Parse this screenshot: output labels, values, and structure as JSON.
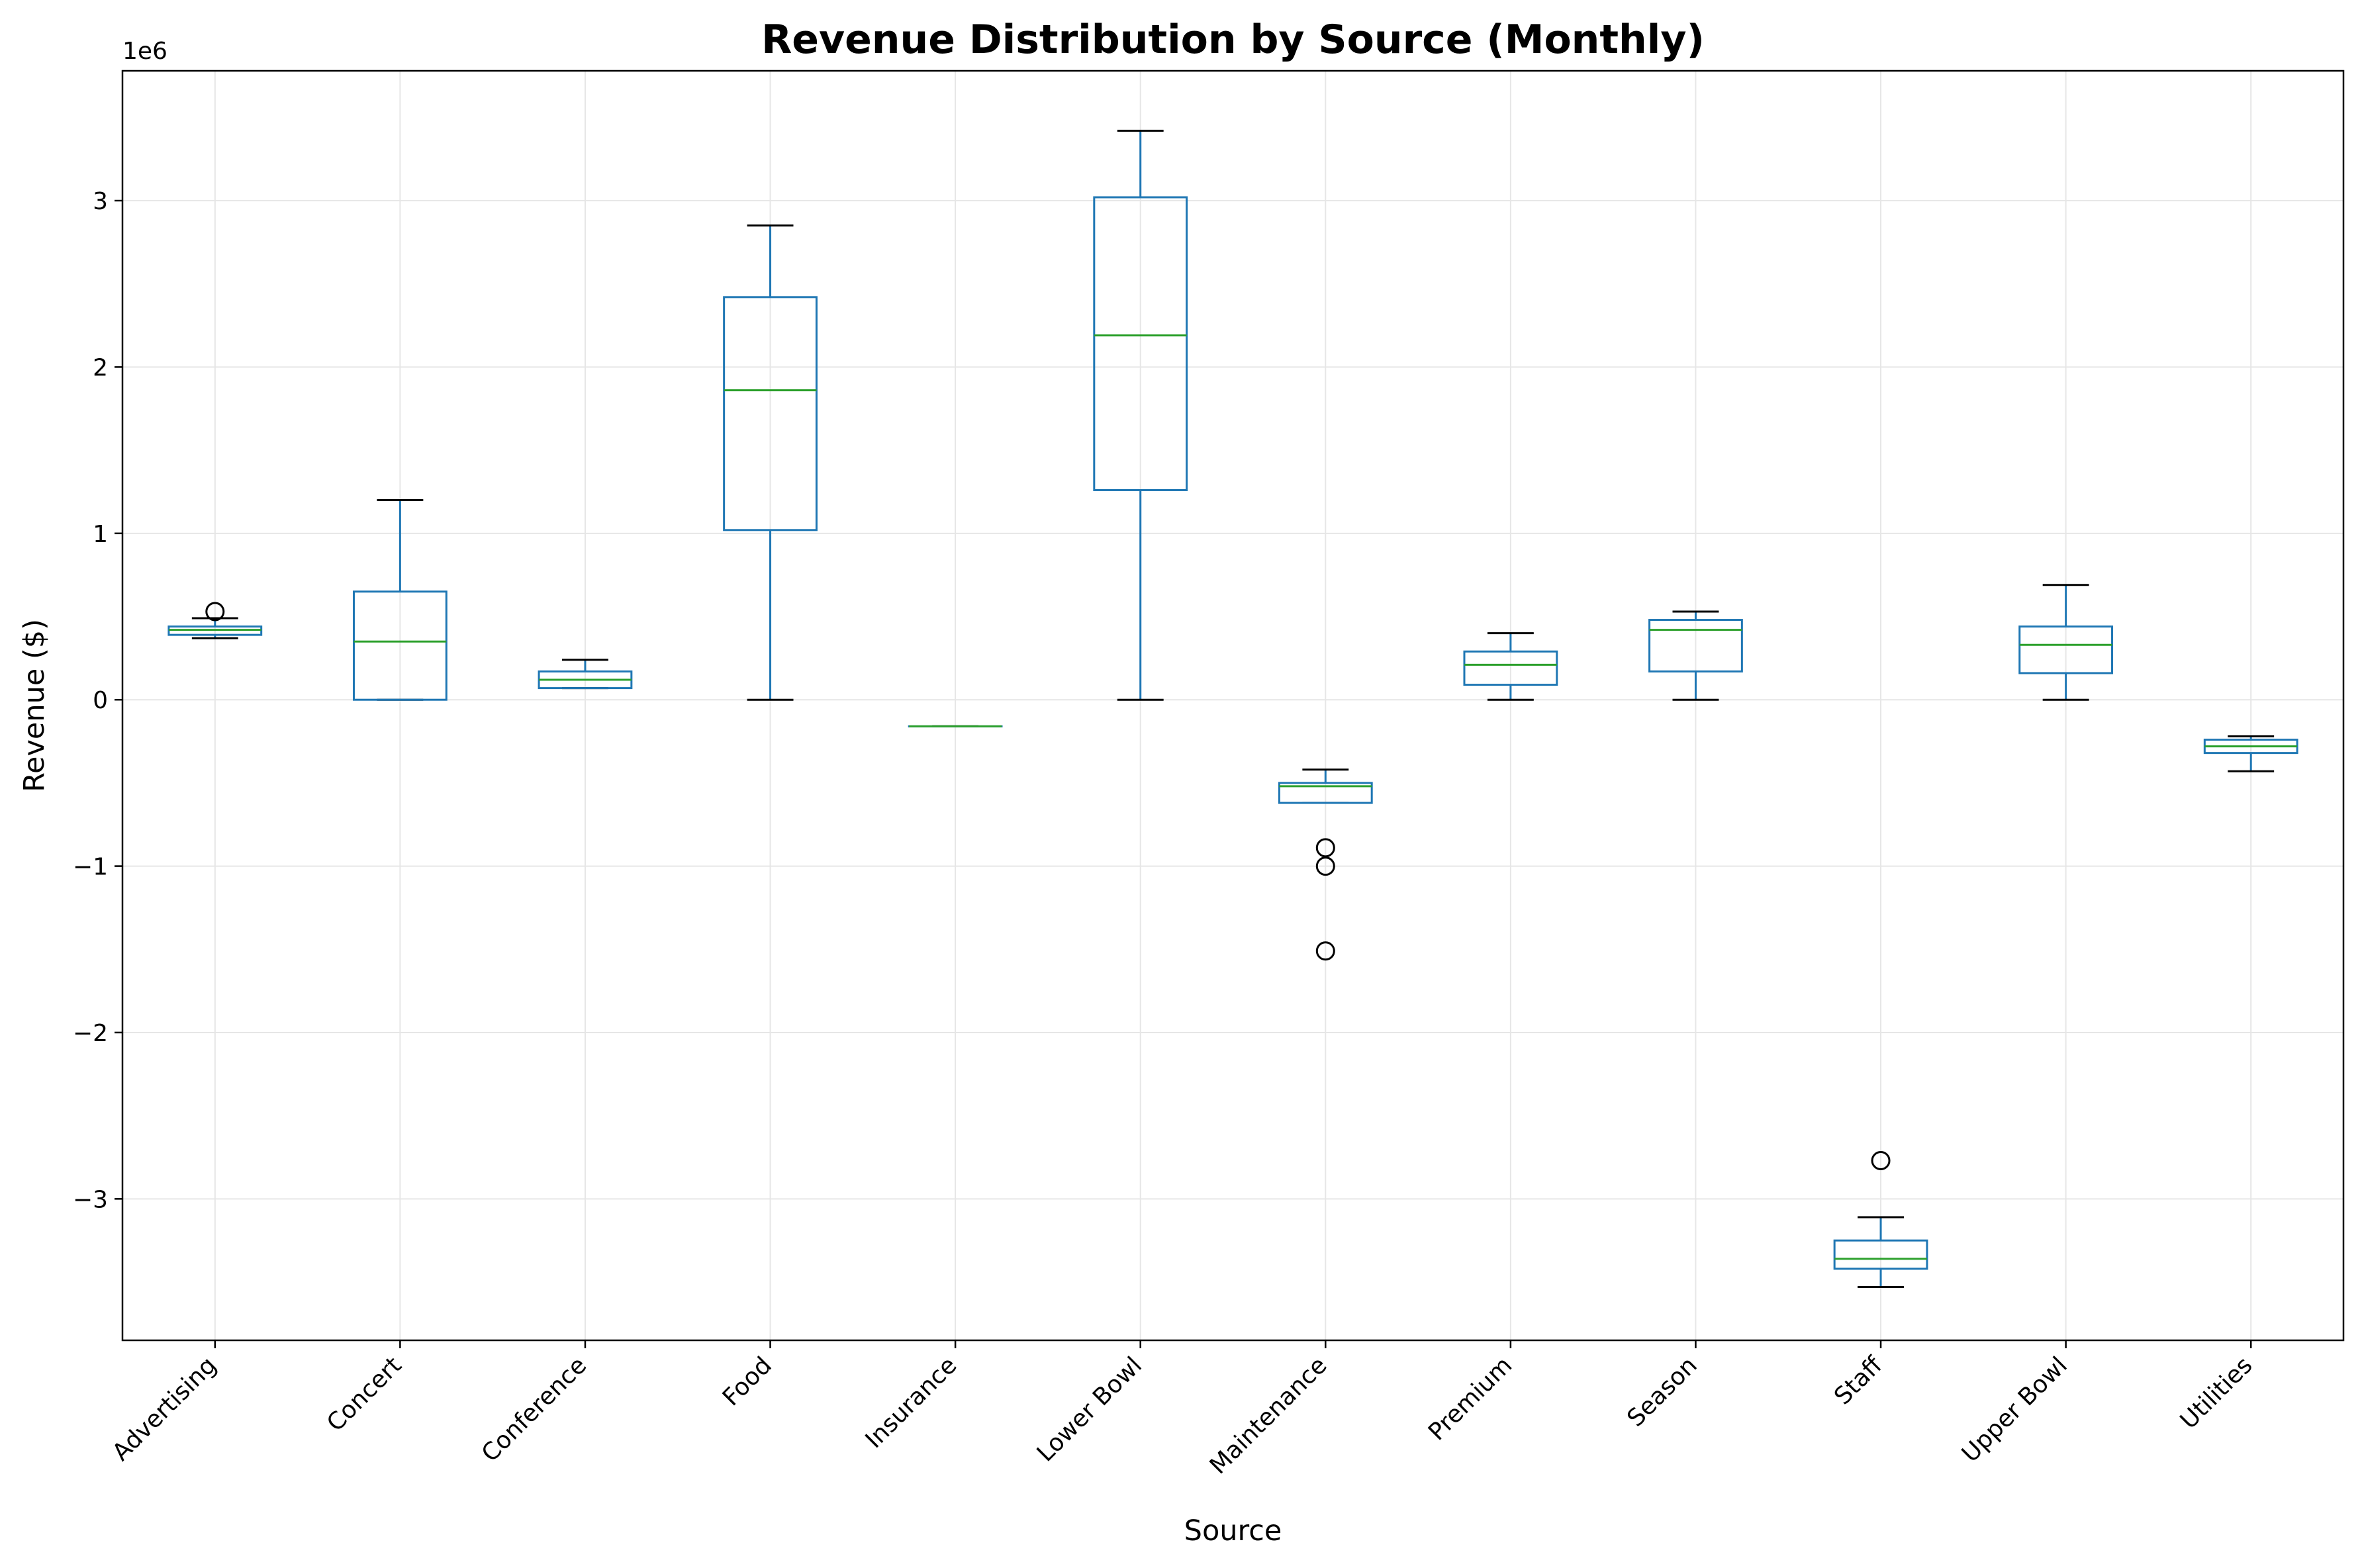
{
  "chart_data": {
    "type": "box",
    "title": "Revenue Distribution by Source (Monthly)",
    "xlabel": "Source",
    "ylabel": "Revenue ($)",
    "y_offset_label": "1e6",
    "ylim": [
      -3.85,
      3.78
    ],
    "yticks": [
      -3,
      -2,
      -1,
      0,
      1,
      2,
      3
    ],
    "ytick_labels": [
      "−3",
      "−2",
      "−1",
      "0",
      "1",
      "2",
      "3"
    ],
    "grid": true,
    "legend": "none",
    "colors": {
      "box": "#1f77b4",
      "median": "#2ca02c",
      "cap": "#000000",
      "flier": "#000000",
      "grid": "#e6e6e6"
    },
    "categories": [
      "Advertising",
      "Concert",
      "Conference",
      "Food",
      "Insurance",
      "Lower Bowl",
      "Maintenance",
      "Premium",
      "Season",
      "Staff",
      "Upper Bowl",
      "Utilities"
    ],
    "boxes": [
      {
        "name": "Advertising",
        "whislo": 0.37,
        "q1": 0.39,
        "med": 0.42,
        "q3": 0.44,
        "whishi": 0.49,
        "fliers": [
          0.53
        ]
      },
      {
        "name": "Concert",
        "whislo": 0.0,
        "q1": 0.0,
        "med": 0.35,
        "q3": 0.65,
        "whishi": 1.2,
        "fliers": []
      },
      {
        "name": "Conference",
        "whislo": 0.07,
        "q1": 0.07,
        "med": 0.12,
        "q3": 0.17,
        "whishi": 0.24,
        "fliers": []
      },
      {
        "name": "Food",
        "whislo": 0.0,
        "q1": 1.02,
        "med": 1.86,
        "q3": 2.42,
        "whishi": 2.85,
        "fliers": []
      },
      {
        "name": "Insurance",
        "whislo": -0.16,
        "q1": -0.16,
        "med": -0.16,
        "q3": -0.16,
        "whishi": -0.16,
        "fliers": []
      },
      {
        "name": "Lower Bowl",
        "whislo": 0.0,
        "q1": 1.26,
        "med": 2.19,
        "q3": 3.02,
        "whishi": 3.42,
        "fliers": []
      },
      {
        "name": "Maintenance",
        "whislo": -0.62,
        "q1": -0.62,
        "med": -0.52,
        "q3": -0.5,
        "whishi": -0.42,
        "fliers": [
          -0.89,
          -1.0,
          -1.51
        ]
      },
      {
        "name": "Premium",
        "whislo": 0.0,
        "q1": 0.09,
        "med": 0.21,
        "q3": 0.29,
        "whishi": 0.4,
        "fliers": []
      },
      {
        "name": "Season",
        "whislo": 0.0,
        "q1": 0.17,
        "med": 0.42,
        "q3": 0.48,
        "whishi": 0.53,
        "fliers": []
      },
      {
        "name": "Staff",
        "whislo": -3.53,
        "q1": -3.42,
        "med": -3.36,
        "q3": -3.25,
        "whishi": -3.11,
        "fliers": [
          -2.77
        ]
      },
      {
        "name": "Upper Bowl",
        "whislo": 0.0,
        "q1": 0.16,
        "med": 0.33,
        "q3": 0.44,
        "whishi": 0.69,
        "fliers": []
      },
      {
        "name": "Utilities",
        "whislo": -0.43,
        "q1": -0.32,
        "med": -0.28,
        "q3": -0.24,
        "whishi": -0.22,
        "fliers": []
      }
    ]
  }
}
